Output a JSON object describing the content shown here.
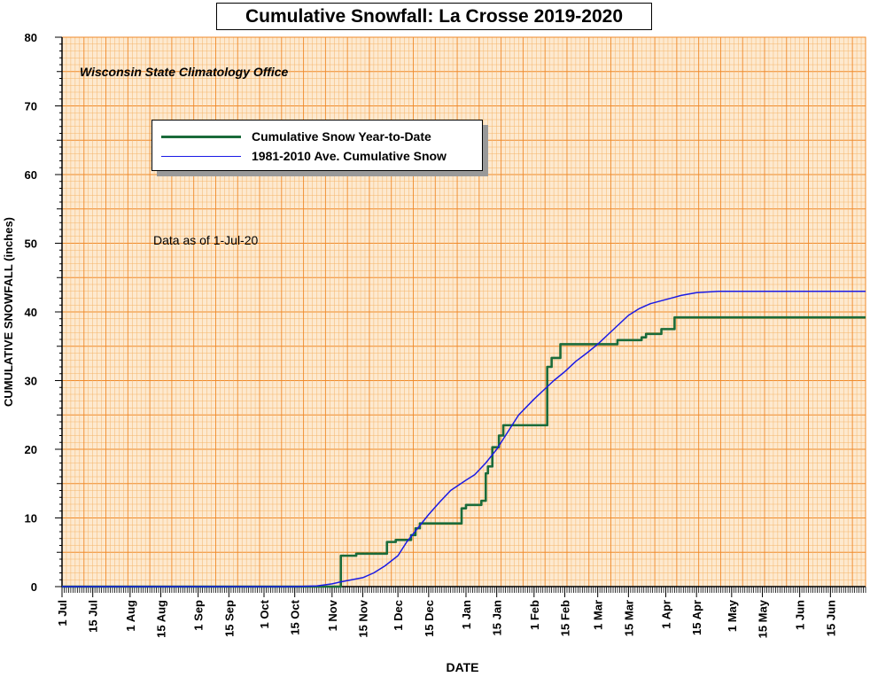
{
  "chart_data": {
    "type": "line",
    "title": "Cumulative Snowfall: La Crosse 2019-2020",
    "subtitle": "Wisconsin State Climatology Office",
    "annotation": "Data as of 1-Jul-20",
    "xlabel": "DATE",
    "ylabel": "CUMULATIVE SNOWFALL (inches)",
    "ylim": [
      0,
      80
    ],
    "yticks": [
      0,
      10,
      20,
      30,
      40,
      50,
      60,
      70,
      80
    ],
    "xlim": [
      "2019-07-01",
      "2020-07-01"
    ],
    "xticks": [
      {
        "date": "2019-07-01",
        "label": "1 Jul"
      },
      {
        "date": "2019-07-15",
        "label": "15 Jul"
      },
      {
        "date": "2019-08-01",
        "label": "1 Aug"
      },
      {
        "date": "2019-08-15",
        "label": "15 Aug"
      },
      {
        "date": "2019-09-01",
        "label": "1 Sep"
      },
      {
        "date": "2019-09-15",
        "label": "15 Sep"
      },
      {
        "date": "2019-10-01",
        "label": "1 Oct"
      },
      {
        "date": "2019-10-15",
        "label": "15 Oct"
      },
      {
        "date": "2019-11-01",
        "label": "1 Nov"
      },
      {
        "date": "2019-11-15",
        "label": "15 Nov"
      },
      {
        "date": "2019-12-01",
        "label": "1 Dec"
      },
      {
        "date": "2019-12-15",
        "label": "15 Dec"
      },
      {
        "date": "2020-01-01",
        "label": "1 Jan"
      },
      {
        "date": "2020-01-15",
        "label": "15 Jan"
      },
      {
        "date": "2020-02-01",
        "label": "1 Feb"
      },
      {
        "date": "2020-02-15",
        "label": "15 Feb"
      },
      {
        "date": "2020-03-01",
        "label": "1 Mar"
      },
      {
        "date": "2020-03-15",
        "label": "15 Mar"
      },
      {
        "date": "2020-04-01",
        "label": "1 Apr"
      },
      {
        "date": "2020-04-15",
        "label": "15 Apr"
      },
      {
        "date": "2020-05-01",
        "label": "1 May"
      },
      {
        "date": "2020-05-15",
        "label": "15 May"
      },
      {
        "date": "2020-06-01",
        "label": "1 Jun"
      },
      {
        "date": "2020-06-15",
        "label": "15 Jun"
      }
    ],
    "grid": true,
    "legend_position": "upper-left",
    "colors": {
      "plot_background": "#fde9cf",
      "grid_major": "#f08a2a",
      "grid_minor": "#f5b56a",
      "year_to_date": "#1a6b3a",
      "average": "#1a1ae6"
    },
    "series": [
      {
        "name": "Cumulative Snow Year-to-Date",
        "style": "step",
        "points": [
          [
            "2019-07-01",
            0
          ],
          [
            "2019-11-05",
            0
          ],
          [
            "2019-11-05",
            4.5
          ],
          [
            "2019-11-12",
            4.5
          ],
          [
            "2019-11-12",
            4.8
          ],
          [
            "2019-11-26",
            4.8
          ],
          [
            "2019-11-26",
            6.5
          ],
          [
            "2019-11-30",
            6.5
          ],
          [
            "2019-11-30",
            6.8
          ],
          [
            "2019-12-07",
            6.8
          ],
          [
            "2019-12-07",
            7.5
          ],
          [
            "2019-12-09",
            7.5
          ],
          [
            "2019-12-09",
            8.5
          ],
          [
            "2019-12-11",
            8.5
          ],
          [
            "2019-12-11",
            9.2
          ],
          [
            "2019-12-30",
            9.2
          ],
          [
            "2019-12-30",
            11.4
          ],
          [
            "2020-01-01",
            11.4
          ],
          [
            "2020-01-01",
            11.9
          ],
          [
            "2020-01-08",
            11.9
          ],
          [
            "2020-01-08",
            12.5
          ],
          [
            "2020-01-10",
            12.5
          ],
          [
            "2020-01-10",
            16.5
          ],
          [
            "2020-01-11",
            16.5
          ],
          [
            "2020-01-11",
            17.5
          ],
          [
            "2020-01-13",
            17.5
          ],
          [
            "2020-01-13",
            20.3
          ],
          [
            "2020-01-16",
            20.3
          ],
          [
            "2020-01-16",
            22.0
          ],
          [
            "2020-01-18",
            22.0
          ],
          [
            "2020-01-18",
            23.5
          ],
          [
            "2020-02-07",
            23.5
          ],
          [
            "2020-02-07",
            32.0
          ],
          [
            "2020-02-09",
            32.0
          ],
          [
            "2020-02-09",
            33.3
          ],
          [
            "2020-02-13",
            33.3
          ],
          [
            "2020-02-13",
            35.3
          ],
          [
            "2020-03-10",
            35.3
          ],
          [
            "2020-03-10",
            35.9
          ],
          [
            "2020-03-21",
            35.9
          ],
          [
            "2020-03-21",
            36.3
          ],
          [
            "2020-03-23",
            36.3
          ],
          [
            "2020-03-23",
            36.8
          ],
          [
            "2020-03-30",
            36.8
          ],
          [
            "2020-03-30",
            37.5
          ],
          [
            "2020-04-05",
            37.5
          ],
          [
            "2020-04-05",
            39.2
          ],
          [
            "2020-07-01",
            39.2
          ]
        ]
      },
      {
        "name": "1981-2010 Ave. Cumulative Snow",
        "style": "line",
        "points": [
          [
            "2019-07-01",
            0
          ],
          [
            "2019-10-15",
            0
          ],
          [
            "2019-10-25",
            0.1
          ],
          [
            "2019-11-01",
            0.4
          ],
          [
            "2019-11-05",
            0.7
          ],
          [
            "2019-11-10",
            1.0
          ],
          [
            "2019-11-15",
            1.3
          ],
          [
            "2019-11-20",
            2.0
          ],
          [
            "2019-11-25",
            3.0
          ],
          [
            "2019-12-01",
            4.5
          ],
          [
            "2019-12-05",
            6.5
          ],
          [
            "2019-12-10",
            8.5
          ],
          [
            "2019-12-15",
            10.5
          ],
          [
            "2019-12-20",
            12.3
          ],
          [
            "2019-12-25",
            14.0
          ],
          [
            "2020-01-01",
            15.5
          ],
          [
            "2020-01-05",
            16.3
          ],
          [
            "2020-01-10",
            18.0
          ],
          [
            "2020-01-15",
            20.0
          ],
          [
            "2020-01-20",
            22.5
          ],
          [
            "2020-01-25",
            25.0
          ],
          [
            "2020-02-01",
            27.3
          ],
          [
            "2020-02-05",
            28.5
          ],
          [
            "2020-02-10",
            30.0
          ],
          [
            "2020-02-15",
            31.3
          ],
          [
            "2020-02-20",
            32.8
          ],
          [
            "2020-02-25",
            34.0
          ],
          [
            "2020-03-01",
            35.3
          ],
          [
            "2020-03-05",
            36.5
          ],
          [
            "2020-03-10",
            38.0
          ],
          [
            "2020-03-15",
            39.5
          ],
          [
            "2020-03-20",
            40.5
          ],
          [
            "2020-03-25",
            41.2
          ],
          [
            "2020-04-01",
            41.8
          ],
          [
            "2020-04-08",
            42.4
          ],
          [
            "2020-04-15",
            42.8
          ],
          [
            "2020-04-25",
            43.0
          ],
          [
            "2020-05-15",
            43.0
          ],
          [
            "2020-07-01",
            43.0
          ]
        ]
      }
    ]
  }
}
